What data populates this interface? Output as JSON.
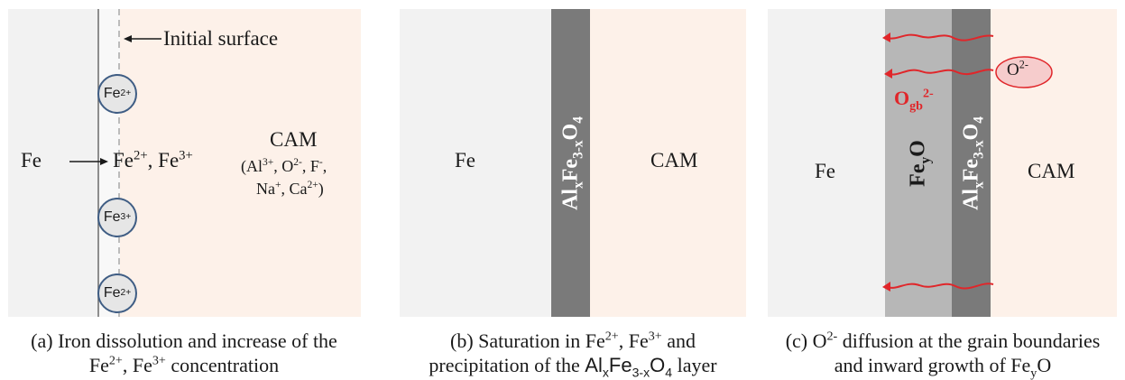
{
  "colors": {
    "metal": "#f2f2f2",
    "surface_layer": "#f8f8f8",
    "cam": "#fdf1e9",
    "spinel_layer": "#7a7a7a",
    "feo_layer": "#b7b7b7",
    "circle_stroke": "#3f5d84",
    "arrow_red": "#e0262a"
  },
  "panel_a": {
    "fe": "Fe",
    "initial_surface": "Initial surface",
    "ions_fe2": "Fe",
    "ions_fe2_charge": "2+",
    "ions_sep": ", Fe",
    "ions_fe3_charge": "3+",
    "cam_title": "CAM",
    "cam_ions_line1": "(Al",
    "cam_al_charge": "3+",
    "cam_o": ", O",
    "cam_o_charge": "2-",
    "cam_f": ", F",
    "cam_f_charge": "-",
    "cam_comma": ",",
    "cam_na": "Na",
    "cam_na_charge": "+",
    "cam_ca": ", Ca",
    "cam_ca_charge": "2+",
    "cam_close": ")",
    "circle_1": "Fe",
    "circle_1_charge": "2+",
    "circle_2": "Fe",
    "circle_2_charge": "3+",
    "circle_3": "Fe",
    "circle_3_charge": "2+"
  },
  "panel_b": {
    "fe": "Fe",
    "cam": "CAM",
    "layer_al": "Al",
    "layer_x": "x",
    "layer_fe": "Fe",
    "layer_3x": "3-x",
    "layer_o": "O",
    "layer_4": "4"
  },
  "panel_c": {
    "fe": "Fe",
    "cam": "CAM",
    "feo_fe": "Fe",
    "feo_y": "y",
    "feo_o": "O",
    "layer_al": "Al",
    "layer_x": "x",
    "layer_fe": "Fe",
    "layer_3x": "3-x",
    "layer_o": "O",
    "layer_4": "4",
    "o_bubble": "O",
    "o_bubble_charge": "2-",
    "ogb": "O",
    "ogb_sub": "gb",
    "ogb_charge": "2-"
  },
  "captions": {
    "a_line1": "(a) Iron dissolution and increase of the",
    "a_line2_fe": "Fe",
    "a_line2_c1": "2+",
    "a_line2_sep": ", Fe",
    "a_line2_c2": "3+",
    "a_line2_tail": " concentration",
    "b_line1": "(b) Saturation in Fe",
    "b_c1": "2+",
    "b_sep": ", Fe",
    "b_c2": "3+",
    "b_and": " and",
    "b_line2": "precipitation of the ",
    "b_al": "Al",
    "b_x": "x",
    "b_fe": "Fe",
    "b_3x": "3-x",
    "b_o": "O",
    "b_4": "4",
    "b_tail": " layer",
    "c_line1_a": "(c) O",
    "c_charge": "2-",
    "c_line1_b": " diffusion at the grain boundaries",
    "c_line2": "and inward growth of Fe",
    "c_y": "y",
    "c_o": "O"
  }
}
